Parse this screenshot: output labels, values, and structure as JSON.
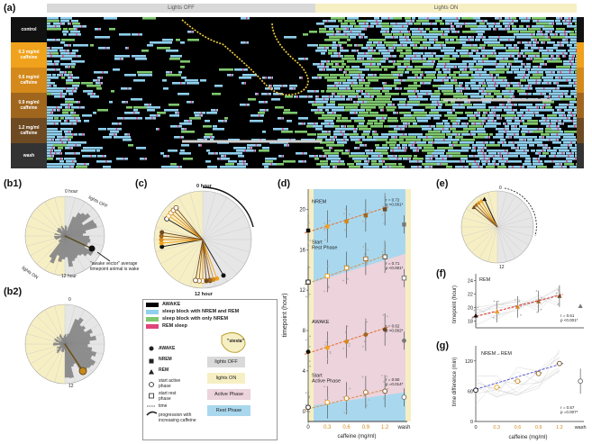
{
  "panel_labels": {
    "a": "(a)",
    "b1": "(b1)",
    "b2": "(b2)",
    "c": "(c)",
    "d": "(d)",
    "e": "(e)",
    "f": "(f)",
    "g": "(g)"
  },
  "panel_a": {
    "header_off": "Lights OFF",
    "header_on": "Lights ON",
    "rows": [
      {
        "label": "control",
        "color": "#111111"
      },
      {
        "label": "0.3 mg/ml caffeine",
        "color": "#f0a21c"
      },
      {
        "label": "0.6 mg/ml caffeine",
        "color": "#d4891a"
      },
      {
        "label": "0.9 mg/ml caffeine",
        "color": "#a0661e"
      },
      {
        "label": "1.2 mg/ml caffeine",
        "color": "#6d4a22"
      },
      {
        "label": "wash",
        "color": "#333333"
      }
    ],
    "colors": {
      "awake": "#000000",
      "nrem_rem": "#8fd0ee",
      "nrem_only": "#7fc86e",
      "rem": "#e0447a",
      "off": "#d9d9d9",
      "on": "#f7efc4"
    }
  },
  "panel_b1": {
    "top": "0 hour",
    "bottom": "12 hour",
    "lights_off": "lights OFF",
    "lights_on": "lights ON",
    "note": "\"awake vector\" average timepoint animal is wake"
  },
  "panel_b2": {
    "top": "0",
    "bottom": "12"
  },
  "panel_c": {
    "top": "0 hour",
    "bottom": "12 hour"
  },
  "panel_e": {
    "top": "0",
    "bottom": "12"
  },
  "legend": {
    "awake": "AWAKE",
    "nrem_rem": "sleep block with NREM and REM",
    "nrem_only": "sleep block with only NREM",
    "rem": "REM sleep",
    "siesta": "\"siesta\"",
    "m_awake": "AWAKE",
    "m_nrem": "NREM",
    "m_rem": "REM",
    "start_active": "start active phase",
    "start_rest": "start rest phase",
    "time": "time",
    "progression": "progression with increasing caffeine",
    "lights_off": "lights OFF",
    "lights_on": "lights ON",
    "active_phase": "Active Phase",
    "rest_phase": "Rest Phase"
  },
  "panel_d": {
    "ylabel": "timepoint (hour)",
    "xlabel": "caffeine (mg/ml)",
    "yticks": [
      "0",
      "4",
      "8",
      "12",
      "16",
      "20"
    ],
    "xticks": [
      "0",
      "0.3",
      "0.6",
      "0.9",
      "1.2",
      "wash"
    ],
    "labels": {
      "nrem": "NREM",
      "start_rest": "Start Rest Phase",
      "awake": "AWAKE",
      "start_active": "Start Active Phase"
    },
    "stats": [
      {
        "r": "r = 0.72",
        "p": "p <0.001*"
      },
      {
        "r": "r = 0.71",
        "p": "p <0.001*"
      },
      {
        "r": "r = 0.62",
        "p": "p <0.002*"
      },
      {
        "r": "r = 0.50",
        "p": "p =0.014*"
      }
    ]
  },
  "panel_f": {
    "ylabel": "timepoint (hour)",
    "label": "REM",
    "yticks": [
      "18",
      "20",
      "22",
      "24"
    ],
    "r": "r = 0.61",
    "p": "p <0.001*"
  },
  "panel_g": {
    "ylabel": "time difference (min)",
    "label": "NREM→REM",
    "yticks": [
      "0",
      "60",
      "120"
    ],
    "r": "r = 0.57",
    "p": "p =0.007*",
    "xlabel": "caffeine (mg/ml)",
    "xticks": [
      "0",
      "0.3",
      "0.6",
      "0.9",
      "1.2",
      "wash"
    ]
  },
  "chart_data": [
    {
      "type": "line",
      "panel": "d",
      "x": [
        0,
        0.3,
        0.6,
        0.9,
        1.2
      ],
      "series": [
        {
          "name": "NREM",
          "values": [
            17.9,
            18.3,
            18.8,
            19.4,
            20.0
          ]
        },
        {
          "name": "Start Rest Phase",
          "values": [
            12.8,
            13.4,
            14.2,
            15.1,
            15.3
          ]
        },
        {
          "name": "AWAKE",
          "values": [
            5.9,
            6.3,
            6.9,
            7.6,
            8.1
          ]
        },
        {
          "name": "Start Active Phase",
          "values": [
            0.4,
            0.9,
            1.3,
            1.9,
            2.0
          ]
        }
      ],
      "ylim": [
        -1,
        22
      ]
    },
    {
      "type": "line",
      "panel": "f",
      "x": [
        0,
        0.3,
        0.6,
        0.9,
        1.2
      ],
      "series": [
        {
          "name": "REM",
          "values": [
            18.8,
            19.4,
            20.1,
            20.9,
            21.7
          ]
        }
      ],
      "ylim": [
        17,
        25
      ]
    },
    {
      "type": "line",
      "panel": "g",
      "x": [
        0,
        0.3,
        0.6,
        0.9,
        1.2
      ],
      "series": [
        {
          "name": "NREM→REM",
          "values": [
            62,
            68,
            80,
            95,
            115
          ]
        }
      ],
      "ylim": [
        0,
        150
      ]
    }
  ]
}
